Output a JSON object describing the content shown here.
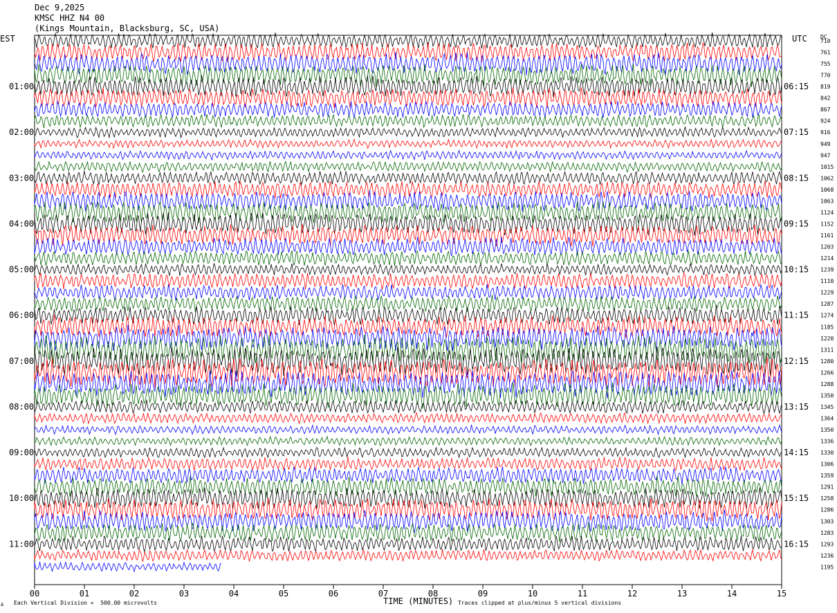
{
  "header": {
    "date": "Dec 9,2025",
    "station": "KMSC HHZ N4 00",
    "location": "(Kings Mountain, Blacksburg, SC, USA)"
  },
  "left_zone": "EST",
  "right_zone": "UTC",
  "dc_label": "DC",
  "footer": {
    "scale_note": "Each Vertical Division =  500.00 microvolts",
    "xlabel": "TIME (MINUTES)",
    "clip_note": "Traces clipped at plus/minus 5 vertical divisions",
    "corner_mark": "A"
  },
  "colors": {
    "black": "#000000",
    "red": "#ff0000",
    "blue": "#0000ff",
    "green": "#006400"
  },
  "chart_data": {
    "type": "line",
    "title": "KMSC HHZ N4 00",
    "xlabel": "TIME (MINUTES)",
    "x_ticks": [
      "00",
      "01",
      "02",
      "03",
      "04",
      "05",
      "06",
      "07",
      "08",
      "09",
      "10",
      "11",
      "12",
      "13",
      "14",
      "15"
    ],
    "xlim": [
      0,
      15
    ],
    "trace_minutes": 15,
    "color_cycle": [
      "black",
      "red",
      "blue",
      "green"
    ],
    "rows_est": [
      "01:00",
      "02:00",
      "03:00",
      "04:00",
      "05:00",
      "06:00",
      "07:00",
      "08:00",
      "09:00",
      "10:00",
      "11:00"
    ],
    "rows_utc": [
      "06:15",
      "07:15",
      "08:15",
      "09:15",
      "10:15",
      "11:15",
      "12:15",
      "13:15",
      "14:15",
      "15:15",
      "16:15"
    ],
    "dc_offsets": [
      710,
      761,
      755,
      770,
      819,
      842,
      867,
      924,
      916,
      949,
      947,
      1015,
      1062,
      1068,
      1063,
      1124,
      1152,
      1161,
      1203,
      1214,
      1239,
      1110,
      1229,
      1287,
      1274,
      1185,
      1220,
      1311,
      1280,
      1266,
      1288,
      1350,
      1345,
      1364,
      1350,
      1336,
      1330,
      1306,
      1359,
      1291,
      1258,
      1286,
      1303,
      1283,
      1293,
      1236,
      1195
    ],
    "last_trace_end_minute": 3.75,
    "grid": false
  }
}
